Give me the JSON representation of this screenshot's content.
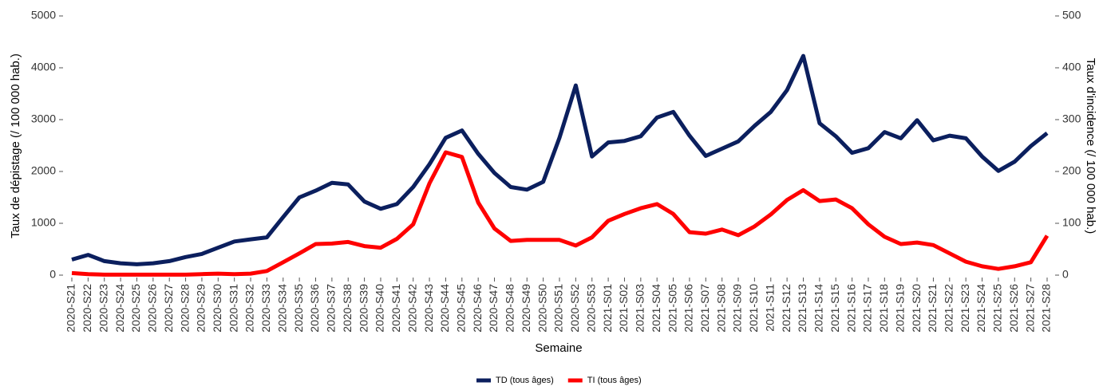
{
  "chart_data": {
    "type": "line",
    "x_label": "Semaine",
    "y_label": "Taux de dépistage (/ 100 000 hab.)",
    "y2_label": "Taux d'incidence (/ 100 000 hab.)",
    "categories": [
      "2020-S21",
      "2020-S22",
      "2020-S23",
      "2020-S24",
      "2020-S25",
      "2020-S26",
      "2020-S27",
      "2020-S28",
      "2020-S29",
      "2020-S30",
      "2020-S31",
      "2020-S32",
      "2020-S33",
      "2020-S34",
      "2020-S35",
      "2020-S36",
      "2020-S37",
      "2020-S38",
      "2020-S39",
      "2020-S40",
      "2020-S41",
      "2020-S42",
      "2020-S43",
      "2020-S44",
      "2020-S45",
      "2020-S46",
      "2020-S47",
      "2020-S48",
      "2020-S49",
      "2020-S50",
      "2020-S51",
      "2020-S52",
      "2020-S53",
      "2021-S01",
      "2021-S02",
      "2021-S03",
      "2021-S04",
      "2021-S05",
      "2021-S06",
      "2021-S07",
      "2021-S08",
      "2021-S09",
      "2021-S10",
      "2021-S11",
      "2021-S12",
      "2021-S13",
      "2021-S14",
      "2021-S15",
      "2021-S16",
      "2021-S17",
      "2021-S18",
      "2021-S19",
      "2021-S20",
      "2021-S21",
      "2021-S22",
      "2021-S23",
      "2021-S24",
      "2021-S25",
      "2021-S26",
      "2021-S27",
      "2021-S28"
    ],
    "series": [
      {
        "name": "TD (tous âges)",
        "color": "#0b1f5e",
        "values": [
          300,
          390,
          270,
          230,
          210,
          230,
          270,
          350,
          410,
          530,
          650,
          690,
          730,
          1120,
          1500,
          1630,
          1780,
          1750,
          1420,
          1280,
          1370,
          1700,
          2140,
          2650,
          2790,
          2340,
          1970,
          1700,
          1650,
          1800,
          2650,
          3660,
          2290,
          2560,
          2590,
          2680,
          3040,
          3150,
          2690,
          2300,
          2440,
          2580,
          2880,
          3150,
          3570,
          4230,
          2930,
          2680,
          2360,
          2450,
          2760,
          2640,
          2990,
          2600,
          2690,
          2640,
          2290,
          2010,
          2190,
          2490,
          2740
        ]
      },
      {
        "name": "TI (tous âges)",
        "color": "#ff0000",
        "axis": "y2",
        "values": [
          4,
          2,
          1,
          1,
          1,
          1,
          1,
          1,
          2,
          3,
          2,
          3,
          8,
          25,
          42,
          60,
          61,
          64,
          56,
          53,
          70,
          98,
          177,
          237,
          228,
          140,
          90,
          66,
          68,
          68,
          68,
          57,
          73,
          105,
          118,
          129,
          137,
          118,
          83,
          80,
          88,
          77,
          94,
          117,
          145,
          164,
          143,
          146,
          129,
          98,
          74,
          60,
          63,
          58,
          42,
          26,
          17,
          12,
          17,
          25,
          76
        ]
      }
    ],
    "ylim": [
      0,
      5000
    ],
    "yticks": [
      0,
      1000,
      2000,
      3000,
      4000,
      5000
    ],
    "y2lim": [
      0,
      500
    ],
    "y2ticks": [
      0,
      100,
      200,
      300,
      400,
      500
    ],
    "legend": "bottom"
  }
}
